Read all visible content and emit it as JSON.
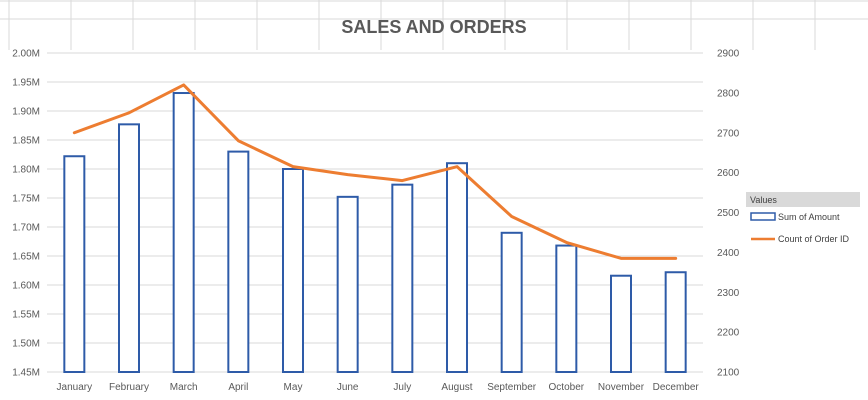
{
  "chart_data": {
    "type": "bar",
    "title": "SALES AND ORDERS",
    "categories": [
      "January",
      "February",
      "March",
      "April",
      "May",
      "June",
      "July",
      "August",
      "September",
      "October",
      "November",
      "December"
    ],
    "series": [
      {
        "name": "Sum of Amount",
        "type": "bar",
        "axis": "left",
        "values": [
          1.822,
          1.877,
          1.931,
          1.83,
          1.8,
          1.752,
          1.773,
          1.81,
          1.69,
          1.668,
          1.616,
          1.622
        ]
      },
      {
        "name": "Count of Order ID",
        "type": "line",
        "axis": "right",
        "values": [
          2700,
          2750,
          2820,
          2680,
          2615,
          2595,
          2580,
          2615,
          2490,
          2425,
          2385,
          2385
        ]
      }
    ],
    "y_left": {
      "min": 1.45,
      "max": 2.0,
      "step": 0.05,
      "tick_labels": [
        "1.45M",
        "1.50M",
        "1.55M",
        "1.60M",
        "1.65M",
        "1.70M",
        "1.75M",
        "1.80M",
        "1.85M",
        "1.90M",
        "1.95M",
        "2.00M"
      ]
    },
    "y_right": {
      "min": 2100,
      "max": 2900,
      "step": 100,
      "tick_labels": [
        "2100",
        "2200",
        "2300",
        "2400",
        "2500",
        "2600",
        "2700",
        "2800",
        "2900"
      ]
    },
    "xlabel": "",
    "ylabel": "",
    "grid": true,
    "legend": {
      "title": "Values",
      "position": "right",
      "entries": [
        "Sum of Amount",
        "Count of Order ID"
      ]
    },
    "colors": {
      "bar_outline": "#2e5ba8",
      "line": "#ed7d31",
      "grid": "#d9d9d9",
      "text": "#595959",
      "legend_header": "#d9d9d9"
    }
  }
}
